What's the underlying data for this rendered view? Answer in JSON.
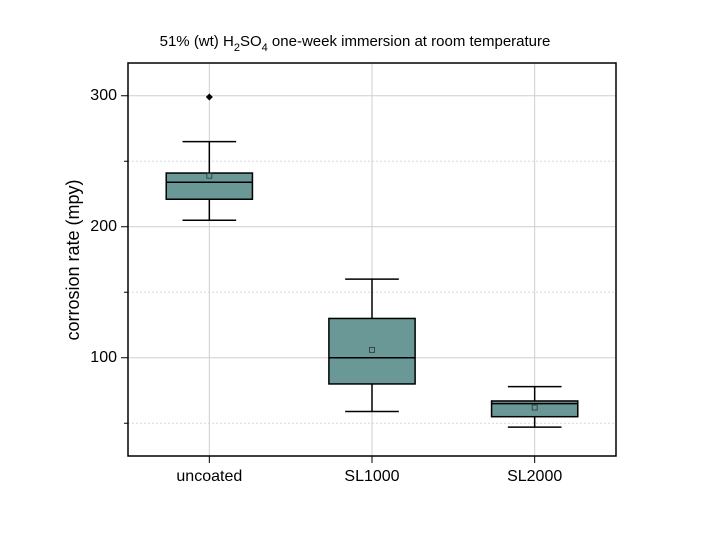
{
  "chart_data": {
    "type": "box",
    "title": "51% (wt) H2SO4 one-week immersion at room temperature",
    "y_label": "corrosion rate (mpy)",
    "categories": [
      "uncoated",
      "SL1000",
      "SL2000"
    ],
    "color": "#699897",
    "whisker_low": [
      205,
      59,
      47
    ],
    "q1": [
      221,
      80,
      55
    ],
    "median": [
      234,
      100,
      65
    ],
    "q3": [
      241,
      130,
      67
    ],
    "whisker_high": [
      265,
      160,
      78
    ],
    "mean": [
      239,
      106,
      62
    ],
    "outliers": [
      [
        299
      ],
      [],
      []
    ],
    "ylim": [
      25,
      325
    ],
    "yticks": [
      100,
      200,
      300
    ],
    "yminorticks": [
      50,
      150,
      250
    ],
    "grid": true
  }
}
